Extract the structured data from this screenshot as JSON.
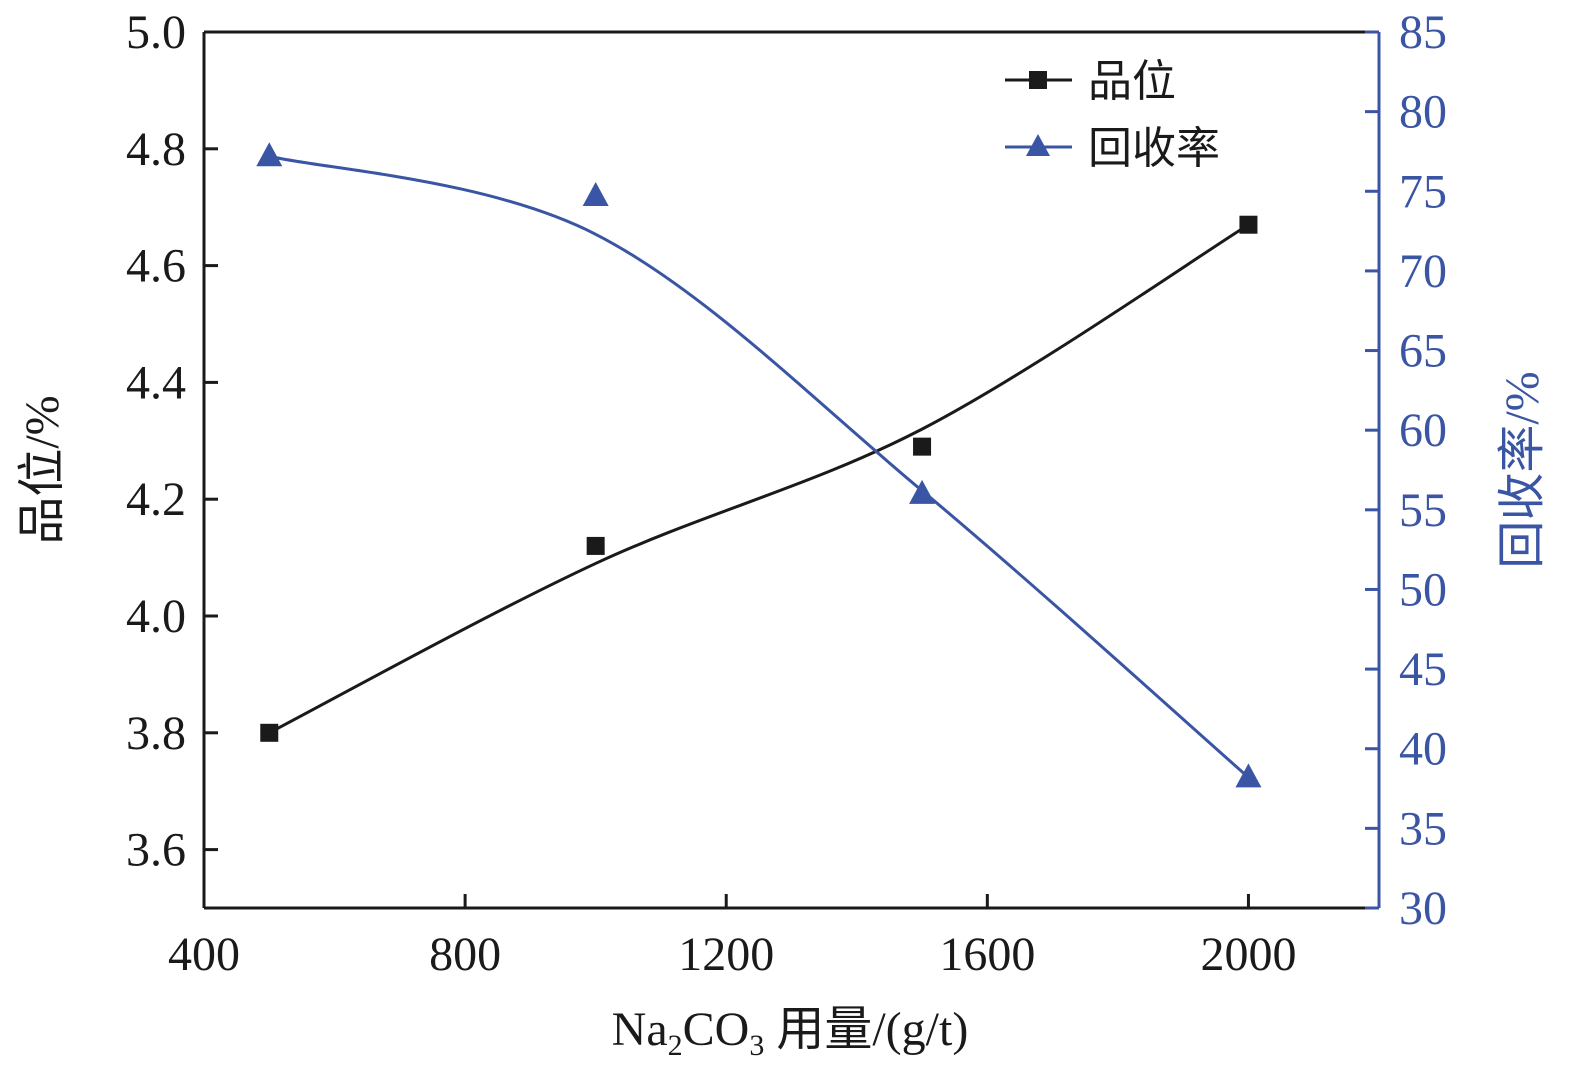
{
  "chart_data": {
    "type": "line",
    "x": [
      500,
      1000,
      1500,
      2000
    ],
    "xlabel_parts": [
      "Na",
      "2",
      "CO",
      "3",
      " 用量/(g/t)"
    ],
    "xlim": [
      400,
      2200
    ],
    "xticks": [
      400,
      800,
      1200,
      1600,
      2000
    ],
    "ylabel_left": "品位/%",
    "ylim_left": [
      3.5,
      5.0
    ],
    "yticks_left": [
      "3.6",
      "3.8",
      "4.0",
      "4.2",
      "4.4",
      "4.6",
      "4.8",
      "5.0"
    ],
    "ylabel_right": "回收率/%",
    "ylim_right": [
      30,
      85
    ],
    "yticks_right": [
      30,
      35,
      40,
      45,
      50,
      55,
      60,
      65,
      70,
      75,
      80,
      85
    ],
    "series": [
      {
        "name": "品位",
        "axis": "left",
        "marker": "square",
        "color": "#1a1a1a",
        "values": [
          3.8,
          4.12,
          4.29,
          4.67
        ],
        "fit": [
          3.8,
          4.09,
          4.32,
          4.67
        ]
      },
      {
        "name": "回收率",
        "axis": "right",
        "marker": "triangle",
        "color": "#3a55a4",
        "values": [
          77.2,
          74.7,
          56.0,
          38.2
        ],
        "fit": [
          77.2,
          72.3,
          56.2,
          38.2
        ]
      }
    ],
    "legend_position": "top-right",
    "grid": false
  }
}
